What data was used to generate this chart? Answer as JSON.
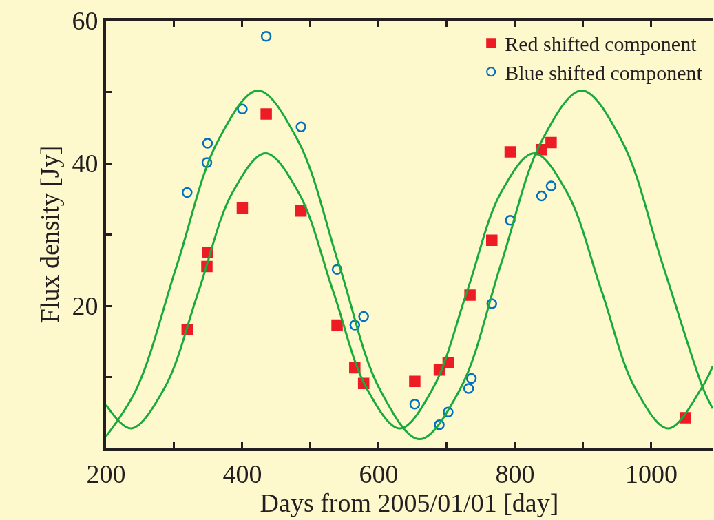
{
  "chart_data": {
    "type": "scatter",
    "xlabel": "Days from 2005/01/01 [day]",
    "ylabel": "Flux density [Jy]",
    "xlim": [
      200,
      1090
    ],
    "ylim": [
      0,
      60
    ],
    "xticks": [
      200,
      {
        "value": 300,
        "label": null
      },
      400,
      {
        "value": 500,
        "label": null
      },
      600,
      {
        "value": 700,
        "label": null
      },
      800,
      {
        "value": 900,
        "label": null
      },
      1000
    ],
    "yticks": [
      {
        "value": 10,
        "label": null
      },
      20,
      {
        "value": 30,
        "label": null
      },
      40,
      {
        "value": 50,
        "label": null
      },
      60
    ],
    "grid": false,
    "legend": "top right",
    "series": [
      {
        "name": "Red shifted component",
        "color": "#ed1c24",
        "marker": "square",
        "x": [
          319,
          348,
          349,
          400,
          435,
          486,
          539,
          565,
          578,
          653,
          689,
          702,
          734,
          766,
          793,
          839,
          853,
          1050
        ],
        "values": [
          16.7,
          25.5,
          27.5,
          33.7,
          46.9,
          33.3,
          17.3,
          11.3,
          9.1,
          9.4,
          11.0,
          12.0,
          21.5,
          29.2,
          41.6,
          41.9,
          42.9,
          4.3
        ]
      },
      {
        "name": "Blue shifted component",
        "color": "#0070c0",
        "marker": "circle",
        "x": [
          319,
          348,
          349,
          400,
          435,
          486,
          539,
          565,
          578,
          653,
          689,
          702,
          732,
          736,
          766,
          793,
          839,
          853
        ],
        "values": [
          35.9,
          40.1,
          42.8,
          47.6,
          57.8,
          45.1,
          25.1,
          17.3,
          18.5,
          6.2,
          3.3,
          5.1,
          8.4,
          9.8,
          20.3,
          32.0,
          35.4,
          36.8
        ]
      },
      {
        "type": "line",
        "color": "#1aaa3c",
        "x": [
          200,
          245,
          304,
          364,
          423,
          482,
          542,
          601,
          660,
          720,
          779,
          839,
          898,
          957,
          1017,
          1076,
          1090
        ],
        "values": [
          1.7,
          8.4,
          25.7,
          43.1,
          50.2,
          43.1,
          25.7,
          8.4,
          1.3,
          8.4,
          25.7,
          43.1,
          50.2,
          43.1,
          25.7,
          8.4,
          5.6
        ]
      },
      {
        "type": "line",
        "color": "#1aaa3c",
        "x": [
          200,
          237,
          286,
          336,
          385,
          434,
          483,
          533,
          582,
          631,
          680,
          730,
          779,
          828,
          877,
          927,
          976,
          1025,
          1074,
          1090
        ],
        "values": [
          6.1,
          2.8,
          8.5,
          22.1,
          35.8,
          41.4,
          35.8,
          22.1,
          8.5,
          2.8,
          8.5,
          22.1,
          35.8,
          41.4,
          35.8,
          22.1,
          8.5,
          2.8,
          8.5,
          11.5
        ]
      }
    ]
  }
}
